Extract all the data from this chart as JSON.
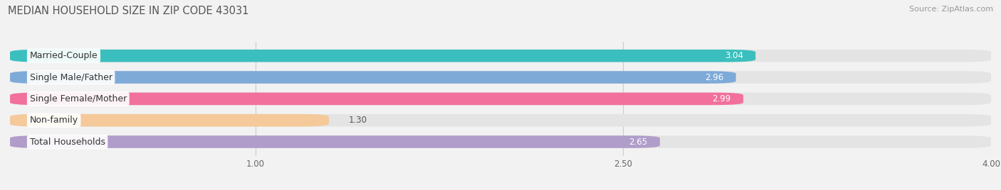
{
  "title": "MEDIAN HOUSEHOLD SIZE IN ZIP CODE 43031",
  "source": "Source: ZipAtlas.com",
  "categories": [
    "Married-Couple",
    "Single Male/Father",
    "Single Female/Mother",
    "Non-family",
    "Total Households"
  ],
  "values": [
    3.04,
    2.96,
    2.99,
    1.3,
    2.65
  ],
  "bar_colors": [
    "#3abfbe",
    "#7eaad8",
    "#f2709c",
    "#f5c99a",
    "#b09dca"
  ],
  "xlim_min": 0.0,
  "xlim_max": 4.0,
  "xticks": [
    1.0,
    2.5,
    4.0
  ],
  "xtick_labels": [
    "1.00",
    "2.50",
    "4.00"
  ],
  "bar_height": 0.58,
  "background_color": "#f2f2f2",
  "bar_bg_color": "#e4e4e4",
  "title_fontsize": 10.5,
  "label_fontsize": 9,
  "value_fontsize": 8.5,
  "source_fontsize": 8,
  "x_axis_min": 0.0
}
